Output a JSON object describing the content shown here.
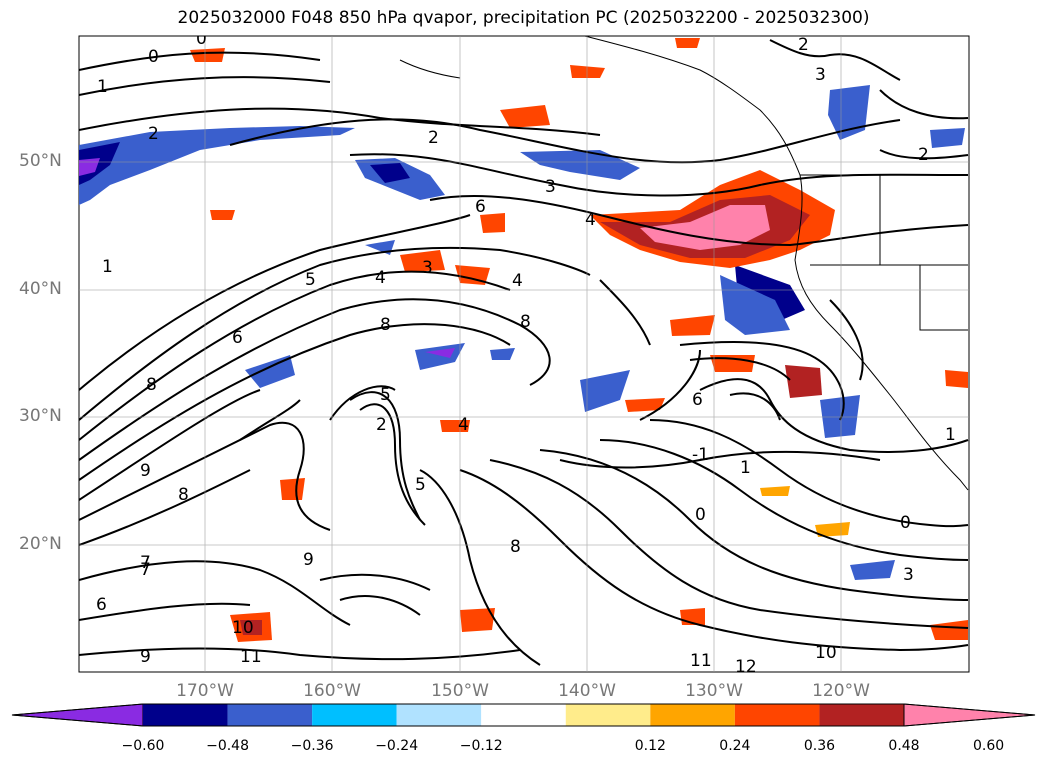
{
  "title": "2025032000 F048 850 hPa qvapor, precipitation PC (2025032200 - 2025032300)",
  "map": {
    "lat_labels": [
      "50°N",
      "40°N",
      "30°N",
      "20°N"
    ],
    "lon_labels": [
      "170°W",
      "160°W",
      "150°W",
      "140°W",
      "130°W",
      "120°W"
    ],
    "contour_labels": [
      "0",
      "1",
      "2",
      "2",
      "3",
      "4",
      "5",
      "6",
      "8",
      "8",
      "4",
      "3",
      "4",
      "5",
      "6",
      "7",
      "8",
      "9",
      "10",
      "11",
      "1",
      "0",
      "-1",
      "2",
      "3",
      "0",
      "9",
      "8",
      "6",
      "5",
      "4",
      "2",
      "1",
      "11",
      "12",
      "10",
      "9",
      "8",
      "7",
      "6",
      "3",
      "2",
      "1",
      "0"
    ]
  },
  "colorbar": {
    "extend": "both",
    "ticks": [
      "−0.60",
      "−0.48",
      "−0.36",
      "−0.24",
      "−0.12",
      "0.12",
      "0.24",
      "0.36",
      "0.48",
      "0.60"
    ],
    "colors": [
      "#8a2be2",
      "#00008b",
      "#3a5fcd",
      "#00bfff",
      "#b0e2ff",
      "#ffffff",
      "#ffec8b",
      "#ffa500",
      "#ff4500",
      "#b22222",
      "#ff82ab"
    ]
  }
}
